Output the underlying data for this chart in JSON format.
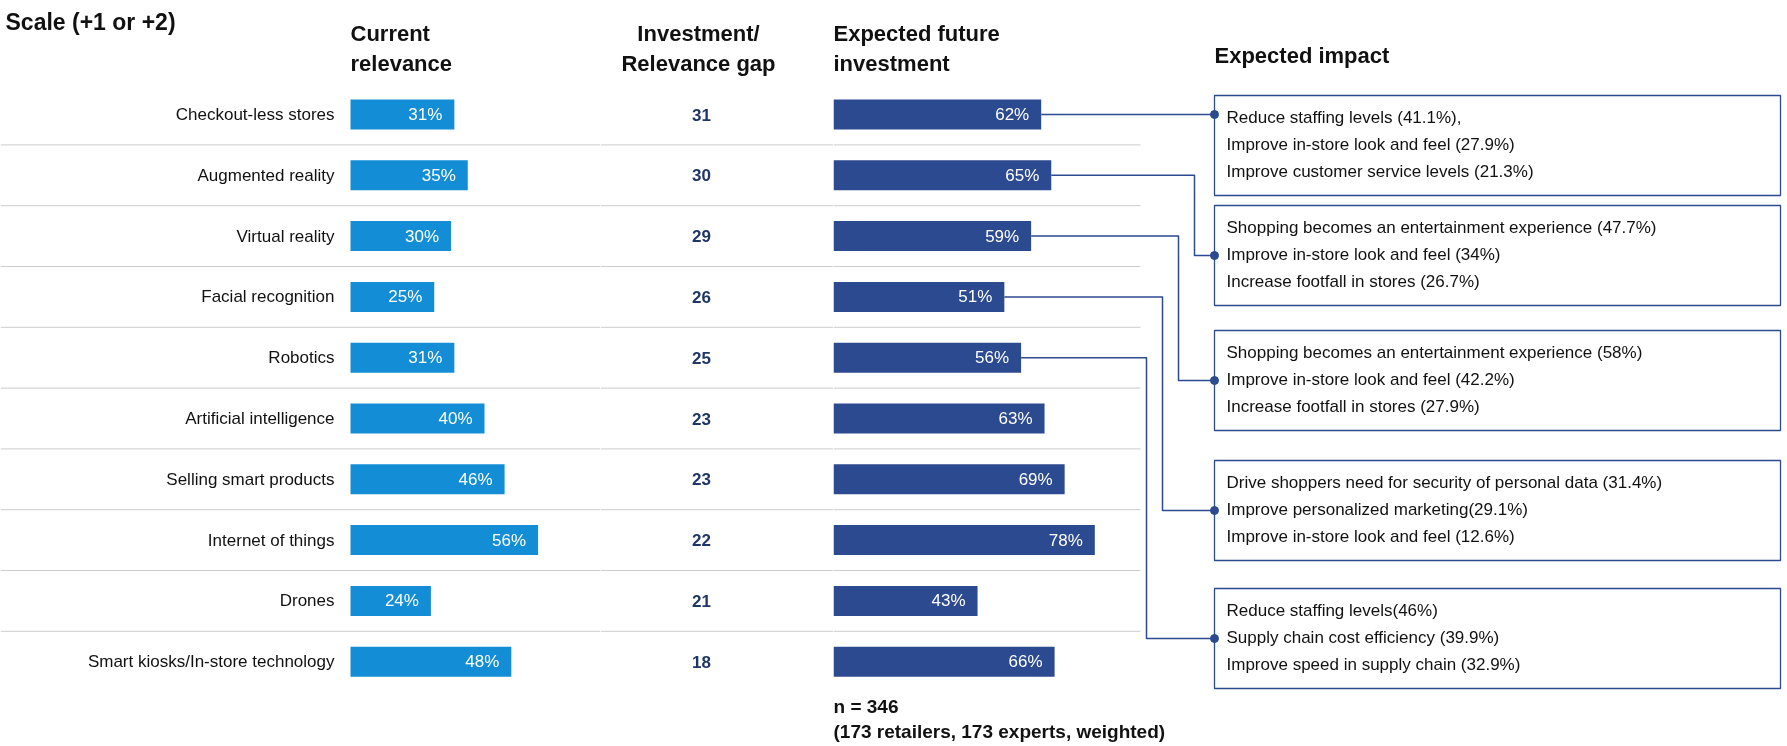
{
  "chart_data": [
    {
      "type": "bar",
      "orientation": "horizontal",
      "title": "Current\nrelevance",
      "tick_labels": "y",
      "annotations": [
        "Scale (+1 or +2)"
      ],
      "categories": [
        "Checkout-less stores",
        "Augmented reality",
        "Virtual reality",
        "Facial recognition",
        "Robotics",
        "Artificial intelligence",
        "Selling smart products",
        "Internet of things",
        "Drones",
        "Smart kiosks/In-store technology"
      ],
      "color": "#138ed6",
      "values": [
        31,
        35,
        30,
        25,
        31,
        40,
        46,
        56,
        24,
        48
      ],
      "value_labels": [
        "31%",
        "35%",
        "30%",
        "25%",
        "31%",
        "40%",
        "46%",
        "56%",
        "24%",
        "48%"
      ]
    },
    {
      "type": "other",
      "title": "Investment/\nRelevance gap",
      "data_labels": true,
      "categories": [
        null,
        null,
        null,
        null,
        null,
        null,
        null,
        null,
        null,
        null
      ],
      "color": "#1f3668",
      "values": [
        31,
        30,
        29,
        26,
        25,
        23,
        23,
        22,
        21,
        18
      ]
    },
    {
      "type": "bar",
      "orientation": "horizontal",
      "title": "Expected future\ninvestment",
      "categories": [
        null,
        null,
        null,
        null,
        null,
        null,
        null,
        null,
        null,
        null
      ],
      "color": "#2c4a8f",
      "values": [
        62,
        65,
        59,
        51,
        56,
        63,
        69,
        78,
        43,
        66
      ],
      "value_labels": [
        "62%",
        "65%",
        "59%",
        "51%",
        "56%",
        "63%",
        "69%",
        "78%",
        "43%",
        "66%"
      ],
      "annotations": [
        "Expected impact",
        "Reduce staffing levels (41.1%),\nImprove in-store look and feel (27.9%)\nImprove customer service levels (21.3%)",
        "Shopping becomes an entertainment experience (47.7%)\nImprove in-store look and feel (34%)\nIncrease footfall in stores (26.7%)",
        "Shopping becomes an entertainment experience (58%)\nImprove in-store look and feel (42.2%)\nIncrease footfall in stores (27.9%)",
        "Drive shoppers need for security of personal data (31.4%)\nImprove personalized marketing(29.1%)\nImprove in-store look and feel (12.6%)",
        "Reduce staffing levels(46%)\nSupply chain cost efficiency (39.9%)\nImprove speed in supply chain (32.9%)",
        "n = 346\n(173 retailers, 173 experts, weighted)"
      ]
    }
  ]
}
